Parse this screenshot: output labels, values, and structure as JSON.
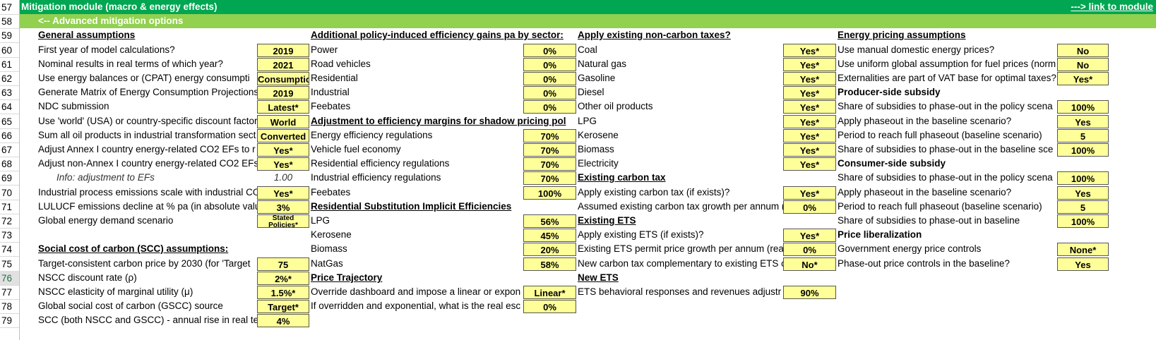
{
  "band": {
    "title": "Mitigation module (macro & energy effects)",
    "link": "---> link to module",
    "subtitle": "<-- Advanced mitigation options"
  },
  "row_numbers": [
    "57",
    "58",
    "59",
    "60",
    "61",
    "62",
    "63",
    "64",
    "65",
    "66",
    "67",
    "68",
    "69",
    "70",
    "71",
    "72",
    "73",
    "74",
    "75",
    "76",
    "77",
    "78",
    "79"
  ],
  "col1": {
    "header": "General assumptions",
    "rows": [
      {
        "label": "First year of model calculations?",
        "value": "2019"
      },
      {
        "label": "Nominal results in real terms of which year?",
        "value": "2021"
      },
      {
        "label": "Use energy balances or (CPAT) energy consumpti",
        "value": "Consumptio"
      },
      {
        "label": "Generate Matrix of Energy Consumption Projections",
        "value": "2019"
      },
      {
        "label": "NDC submission",
        "value": "Latest*"
      },
      {
        "label": "Use 'world' (USA) or country-specific discount factor",
        "value": "World"
      },
      {
        "label": "Sum all oil products in industrial transformation sect",
        "value": "Converted"
      },
      {
        "label": "Adjust Annex I country energy-related CO2 EFs to r",
        "value": "Yes*"
      },
      {
        "label": "Adjust non-Annex I country energy-related CO2 EFs",
        "value": "Yes*"
      },
      {
        "label": "Info: adjustment to EFs",
        "value": "1.00"
      },
      {
        "label": "Industrial process emissions scale with industrial CO",
        "value": "Yes*"
      },
      {
        "label": "LULUCF emissions decline at % pa (in absolute valu",
        "value": "3%"
      },
      {
        "label": "Global energy demand scenario",
        "value": "Stated Policies*"
      }
    ],
    "scc_header": "Social cost of carbon (SCC) assumptions:",
    "scc_rows": [
      {
        "label": "Target-consistent carbon price by 2030 (for 'Target",
        "value": "75"
      },
      {
        "label": "NSCC discount rate (ρ)",
        "value": "2%*"
      },
      {
        "label": "NSCC elasticity of marginal utility (μ)",
        "value": "1.5%*"
      },
      {
        "label": "Global social cost of carbon (GSCC) source",
        "value": "Target*"
      },
      {
        "label": "SCC (both NSCC and GSCC) - annual rise in real te",
        "value": "4%"
      }
    ]
  },
  "col2": {
    "header": "Additional policy-induced efficiency gains pa by sector:",
    "rows": [
      {
        "label": "Power",
        "value": "0%"
      },
      {
        "label": "Road vehicles",
        "value": "0%"
      },
      {
        "label": "Residential",
        "value": "0%"
      },
      {
        "label": "Industrial",
        "value": "0%"
      },
      {
        "label": "Feebates",
        "value": "0%"
      }
    ],
    "header2": "Adjustment to efficiency margins for shadow pricing pol",
    "rows2": [
      {
        "label": "Energy efficiency regulations",
        "value": "70%"
      },
      {
        "label": "Vehicle fuel economy",
        "value": "70%"
      },
      {
        "label": "Residential efficiency regulations",
        "value": "70%"
      },
      {
        "label": "Industrial efficiency regulations",
        "value": "70%"
      },
      {
        "label": "Feebates",
        "value": "100%"
      }
    ],
    "header3": "Residential Substitution Implicit Efficiencies",
    "rows3": [
      {
        "label": "LPG",
        "value": "56%"
      },
      {
        "label": "Kerosene",
        "value": "45%"
      },
      {
        "label": "Biomass",
        "value": "20%"
      },
      {
        "label": "NatGas",
        "value": "58%"
      }
    ],
    "header4": "Price Trajectory",
    "rows4": [
      {
        "label": "Override dashboard and impose a linear or expon",
        "value": "Linear*"
      },
      {
        "label": "If overridden and exponential, what is the real esc",
        "value": "0%"
      }
    ]
  },
  "col3": {
    "header": "Apply existing non-carbon taxes?",
    "rows": [
      {
        "label": "Coal",
        "value": "Yes*"
      },
      {
        "label": "Natural gas",
        "value": "Yes*"
      },
      {
        "label": "Gasoline",
        "value": "Yes*"
      },
      {
        "label": "Diesel",
        "value": "Yes*"
      },
      {
        "label": "Other oil products",
        "value": "Yes*"
      },
      {
        "label": "LPG",
        "value": "Yes*"
      },
      {
        "label": "Kerosene",
        "value": "Yes*"
      },
      {
        "label": "Biomass",
        "value": "Yes*"
      },
      {
        "label": "Electricity",
        "value": "Yes*"
      }
    ],
    "header2": "Existing carbon tax",
    "rows2": [
      {
        "label": "Apply existing carbon tax (if exists)?",
        "value": "Yes*"
      },
      {
        "label": "Assumed existing carbon tax growth per annum (",
        "value": "0%"
      }
    ],
    "header3": "Existing ETS",
    "rows3": [
      {
        "label": "Apply existing ETS (if exists)?",
        "value": "Yes*"
      },
      {
        "label": "Existing ETS permit price growth per annum (rea",
        "value": "0%"
      },
      {
        "label": "New carbon tax complementary to existing ETS c",
        "value": "No*"
      }
    ],
    "header4": "New ETS",
    "rows4": [
      {
        "label": "ETS behavioral responses and revenues adjustr",
        "value": "90%"
      }
    ]
  },
  "col4": {
    "header": "Energy pricing assumptions",
    "rows": [
      {
        "label": "Use manual domestic energy prices?",
        "value": "No"
      },
      {
        "label": "Use uniform global assumption for fuel prices (norm",
        "value": "No"
      },
      {
        "label": "Externalities are part of VAT base for optimal taxes?",
        "value": "Yes*"
      }
    ],
    "header2": "Producer-side subsidy",
    "rows2": [
      {
        "label": "Share of subsidies to phase-out in the policy scena",
        "value": "100%"
      },
      {
        "label": "Apply phaseout in the baseline scenario?",
        "value": "Yes"
      },
      {
        "label": "Period to reach full phaseout (baseline scenario)",
        "value": "5"
      },
      {
        "label": "Share of subsidies to phase-out in the baseline sce",
        "value": "100%"
      }
    ],
    "header3": "Consumer-side subsidy",
    "rows3": [
      {
        "label": "Share of subsidies to phase-out in the policy scena",
        "value": "100%"
      },
      {
        "label": "Apply phaseout in the baseline scenario?",
        "value": "Yes"
      },
      {
        "label": "Period to reach full phaseout (baseline scenario)",
        "value": "5"
      },
      {
        "label": "Share of subsidies to phase-out in baseline",
        "value": "100%"
      }
    ],
    "header4": "Price liberalization",
    "rows4": [
      {
        "label": "Government energy price controls",
        "value": "None*"
      },
      {
        "label": "Phase-out price controls in the baseline?",
        "value": "Yes"
      }
    ]
  }
}
